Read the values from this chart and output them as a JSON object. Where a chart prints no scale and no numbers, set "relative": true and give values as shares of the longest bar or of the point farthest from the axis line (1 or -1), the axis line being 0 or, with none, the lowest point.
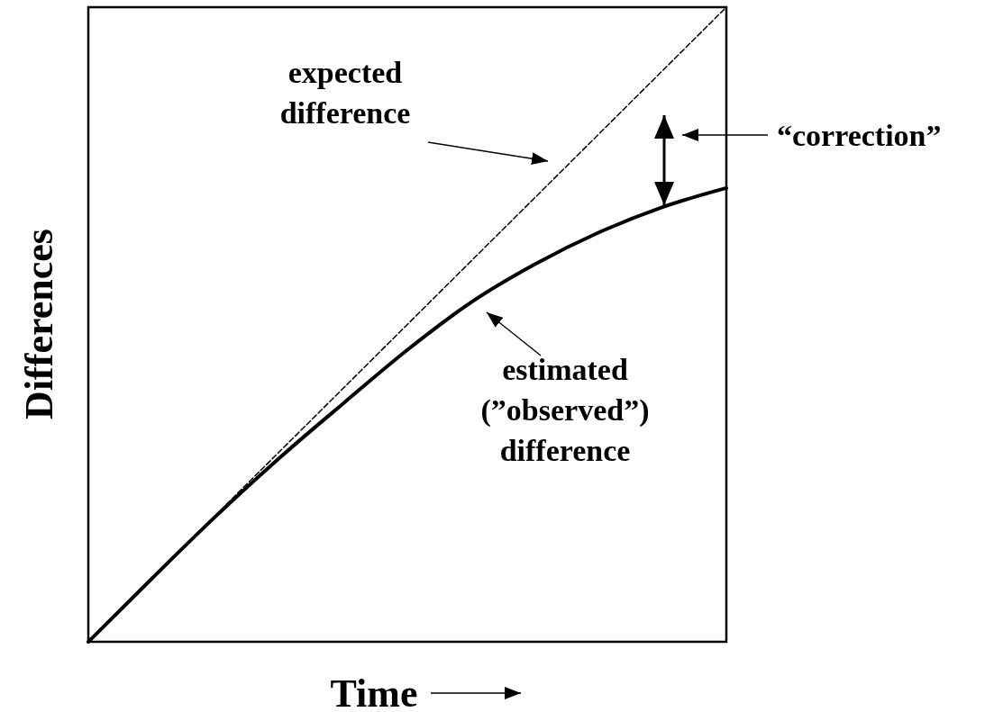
{
  "chart_data": {
    "type": "line",
    "relative": true,
    "xlabel": "Time",
    "ylabel": "Differences",
    "tick_labels": false,
    "categories": [
      null,
      null,
      null,
      null,
      null,
      null,
      null,
      null,
      null,
      null,
      null
    ],
    "series": [
      {
        "color": "#000000",
        "line_style": "dashed",
        "values": [
          0,
          0.1,
          0.2,
          0.3,
          0.4,
          0.5,
          0.6,
          0.7,
          0.8,
          0.9,
          1
        ]
      },
      {
        "color": "#000000",
        "line_style": "solid",
        "values": [
          0,
          0.1,
          0.198,
          0.29,
          0.376,
          0.46,
          0.535,
          0.595,
          0.645,
          0.685,
          0.715
        ]
      }
    ],
    "annotations": [
      "expected\ndifference",
      "estimated\n(”observed”)\ndifference",
      "“correction”"
    ]
  }
}
